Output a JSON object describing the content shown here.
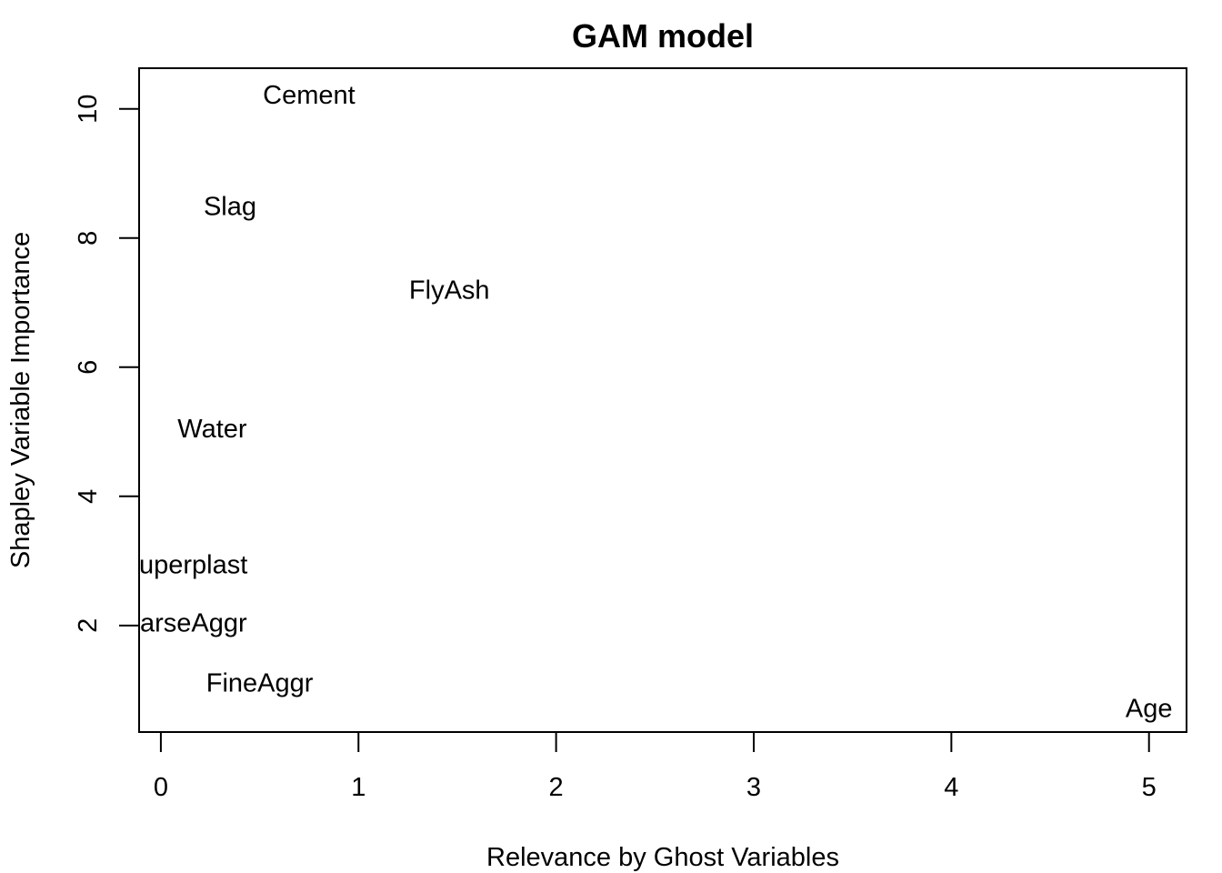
{
  "chart_data": {
    "type": "scatter",
    "title": "GAM model",
    "xlabel": "Relevance by Ghost Variables",
    "ylabel": "Shapley Variable Importance",
    "xlim": [
      -0.11,
      5.19
    ],
    "ylim": [
      0.35,
      10.63
    ],
    "xticks": [
      0,
      1,
      2,
      3,
      4,
      5
    ],
    "yticks": [
      2,
      4,
      6,
      8,
      10
    ],
    "grid": false,
    "legend": "none",
    "points": [
      {
        "label": "Cement",
        "x": 0.75,
        "y": 10.22
      },
      {
        "label": "Slag",
        "x": 0.35,
        "y": 8.5
      },
      {
        "label": "FlyAsh",
        "x": 1.46,
        "y": 7.2
      },
      {
        "label": "Water",
        "x": 0.26,
        "y": 5.05
      },
      {
        "label": "Superplast",
        "x": 0.12,
        "y": 2.95
      },
      {
        "label": "CoarseAggr",
        "x": 0.08,
        "y": 2.05
      },
      {
        "label": "FineAggr",
        "x": 0.5,
        "y": 1.12
      },
      {
        "label": "Age",
        "x": 5.0,
        "y": 0.72
      }
    ]
  }
}
